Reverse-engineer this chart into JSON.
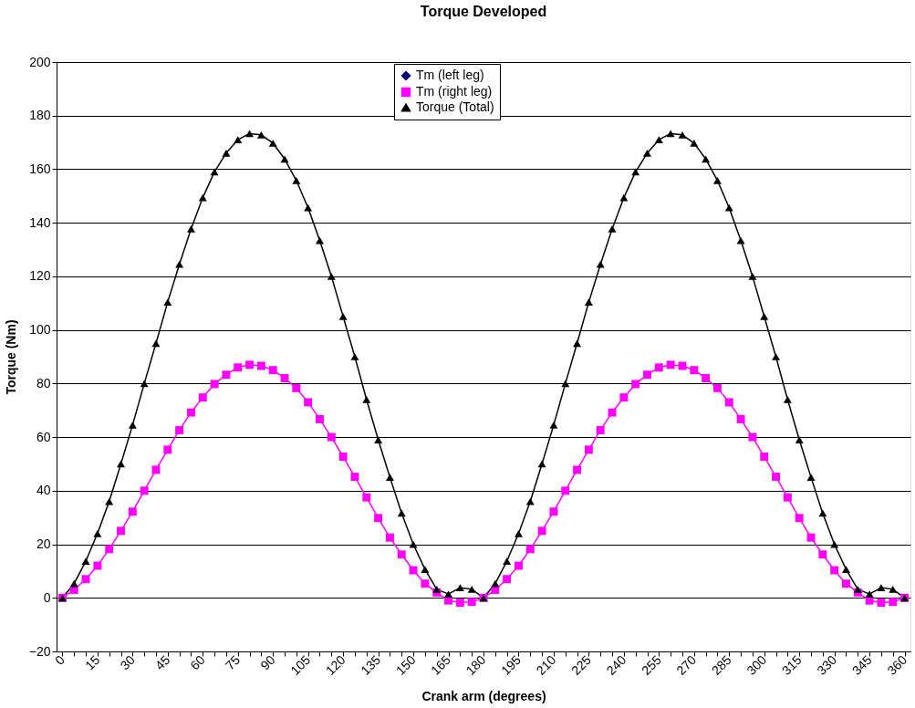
{
  "chart_data": {
    "type": "line",
    "title": "Torque Developed",
    "xlabel": "Crank arm (degrees)",
    "ylabel": "Torque (Nm)",
    "categories": [
      "0",
      null,
      null,
      "15",
      null,
      null,
      "30",
      null,
      null,
      "45",
      null,
      null,
      "60",
      null,
      null,
      "75",
      null,
      null,
      "90",
      null,
      null,
      "105",
      null,
      null,
      "120",
      null,
      null,
      "135",
      null,
      null,
      "150",
      null,
      null,
      "165",
      null,
      null,
      "180",
      null,
      null,
      "195",
      null,
      null,
      "210",
      null,
      null,
      "225",
      null,
      null,
      "240",
      null,
      null,
      "255",
      null,
      null,
      "270",
      null,
      null,
      "285",
      null,
      null,
      "300",
      null,
      null,
      "315",
      null,
      null,
      "330",
      null,
      null,
      "345",
      null,
      null,
      "360"
    ],
    "series": [
      {
        "name": "Tm (left leg)",
        "color": "#000080",
        "marker": "diamond",
        "values": [
          null,
          null,
          null,
          null,
          null,
          null,
          null,
          null,
          null,
          null,
          null,
          null,
          null,
          null,
          null,
          null,
          null,
          null,
          null,
          null,
          null,
          null,
          null,
          null,
          null,
          null,
          null,
          null,
          null,
          null,
          null,
          null,
          null,
          null,
          null,
          null,
          null,
          null,
          null,
          null,
          null,
          null,
          null,
          null,
          null,
          null,
          null,
          null,
          null,
          null,
          null,
          null,
          null,
          null,
          null,
          null,
          null,
          null,
          null,
          null,
          null,
          null,
          null,
          null,
          null,
          null,
          null,
          null,
          null,
          null,
          null,
          null,
          null
        ]
      },
      {
        "name": "Tm (right leg)",
        "color": "#ff00ff",
        "marker": "square",
        "values": [
          0,
          3,
          7,
          12,
          18.2,
          25,
          32.2,
          40,
          47.8,
          55.3,
          62.6,
          69.2,
          74.8,
          79.8,
          83.3,
          86,
          87,
          86.6,
          85,
          82,
          78.3,
          73,
          66.7,
          60,
          52.7,
          45.2,
          37.5,
          29.8,
          22.5,
          16.2,
          10.3,
          5.3,
          2,
          -1,
          -1.8,
          -1.5,
          0,
          3,
          7,
          12,
          18.2,
          25,
          32.2,
          40,
          47.8,
          55.3,
          62.6,
          69.2,
          74.8,
          79.8,
          83.3,
          86,
          87,
          86.6,
          85,
          82,
          78.3,
          73,
          66.7,
          60,
          52.7,
          45.2,
          37.5,
          29.8,
          22.5,
          16.2,
          10.3,
          5.3,
          2,
          -1,
          -1.8,
          -1.5,
          0
        ]
      },
      {
        "name": "Torque (Total)",
        "color": "#000000",
        "marker": "triangle",
        "values": [
          0,
          5.3,
          13.7,
          24,
          36,
          50,
          64.5,
          80,
          95,
          110.4,
          124.5,
          137.7,
          149.4,
          159,
          166,
          171,
          173.3,
          172.8,
          169.7,
          163.8,
          155.8,
          145.6,
          133.4,
          120,
          105,
          90,
          74,
          59,
          45,
          31.6,
          20,
          10.6,
          3.2,
          1.4,
          3.8,
          3.2,
          0,
          5.3,
          13.7,
          24,
          36,
          50,
          64.5,
          80,
          95,
          110.4,
          124.5,
          137.7,
          149.4,
          159,
          166,
          171,
          173.3,
          172.8,
          169.7,
          163.8,
          155.8,
          145.6,
          133.4,
          120,
          105,
          90,
          74,
          59,
          45,
          31.6,
          20,
          10.6,
          3.2,
          1.4,
          3.8,
          3.2,
          0
        ]
      }
    ],
    "ylim": [
      -20,
      200
    ],
    "yticks": [
      -20,
      0,
      20,
      40,
      60,
      80,
      100,
      120,
      140,
      160,
      180,
      200
    ],
    "grid": "y",
    "legend": "top",
    "line_style": "solid"
  }
}
